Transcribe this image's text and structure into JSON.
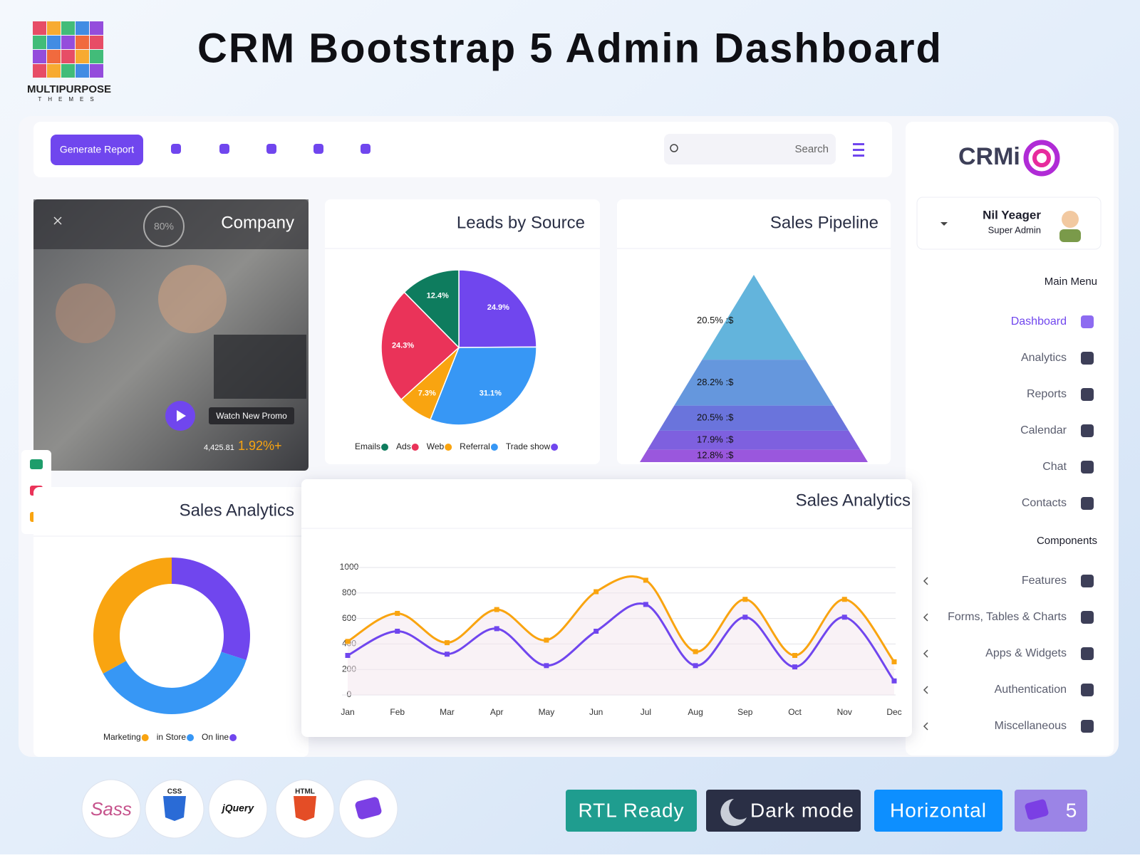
{
  "header": {
    "title": "CRM Bootstrap 5 Admin Dashboard",
    "brand": "MULTIPURPOSE",
    "brand_sub": "THEMES"
  },
  "toolbar": {
    "button": "Generate Report",
    "search": "Search"
  },
  "sidebar": {
    "logo": "CRMi",
    "user_name": "Nil Yeager",
    "user_role": "Super Admin",
    "main_heading": "Main Menu",
    "main_items": [
      "Dashboard",
      "Analytics",
      "Reports",
      "Calendar",
      "Chat",
      "Contacts"
    ],
    "components_heading": "Components",
    "component_items": [
      "Features",
      "Forms, Tables & Charts",
      "Apps & Widgets",
      "Authentication",
      "Miscellaneous"
    ]
  },
  "promo": {
    "title": "Company",
    "ring": "80%",
    "button": "Watch New Promo",
    "amount": "4,425.81",
    "change": "1.92%+"
  },
  "tech": [
    "Sass",
    "CSS",
    "jQuery",
    "HTML"
  ],
  "badges": [
    "RTL Ready",
    "Dark mode",
    "Horizontal",
    "5"
  ],
  "chart_data": [
    {
      "type": "pie",
      "title": "Leads by Source",
      "categories": [
        "Emails",
        "Ads",
        "Web",
        "Referral",
        "Trade show"
      ],
      "values": [
        12.4,
        24.3,
        7.3,
        31.1,
        24.9
      ],
      "value_labels": [
        "12.4%",
        "24.3%",
        "7.3%",
        "31.1%",
        "24.9%"
      ],
      "colors": [
        "#0e7c5e",
        "#ea3359",
        "#f9a410",
        "#3797f5",
        "#7046ee"
      ]
    },
    {
      "type": "pyramid",
      "title": "Sales Pipeline",
      "values": [
        20.5,
        28.2,
        20.5,
        17.9,
        12.8
      ],
      "value_labels": [
        "20.5% :$",
        "28.2% :$",
        "20.5% :$",
        "17.9% :$",
        "12.8% :$"
      ],
      "colors": [
        "#63b4dc",
        "#6597dd",
        "#6a74dc",
        "#7e60df",
        "#9a57dd"
      ]
    },
    {
      "type": "donut",
      "title": "Sales Analytics",
      "categories": [
        "Marketing",
        "in Store",
        "On line"
      ],
      "values": [
        33,
        37,
        30
      ],
      "colors": [
        "#f9a410",
        "#3797f5",
        "#7046ee"
      ]
    },
    {
      "type": "line",
      "title": "Sales Analytics",
      "categories": [
        "Jan",
        "Feb",
        "Mar",
        "Apr",
        "May",
        "Jun",
        "Jul",
        "Aug",
        "Sep",
        "Oct",
        "Nov",
        "Dec"
      ],
      "series": [
        {
          "color": "#f9a410",
          "values": [
            420,
            640,
            410,
            670,
            430,
            810,
            900,
            340,
            750,
            310,
            750,
            260
          ]
        },
        {
          "color": "#7046ee",
          "values": [
            310,
            500,
            320,
            520,
            230,
            500,
            710,
            230,
            610,
            220,
            610,
            110
          ]
        }
      ],
      "ylim": [
        0,
        1000
      ],
      "yticks": [
        0,
        200,
        400,
        600,
        800,
        1000
      ],
      "grid": true
    }
  ]
}
